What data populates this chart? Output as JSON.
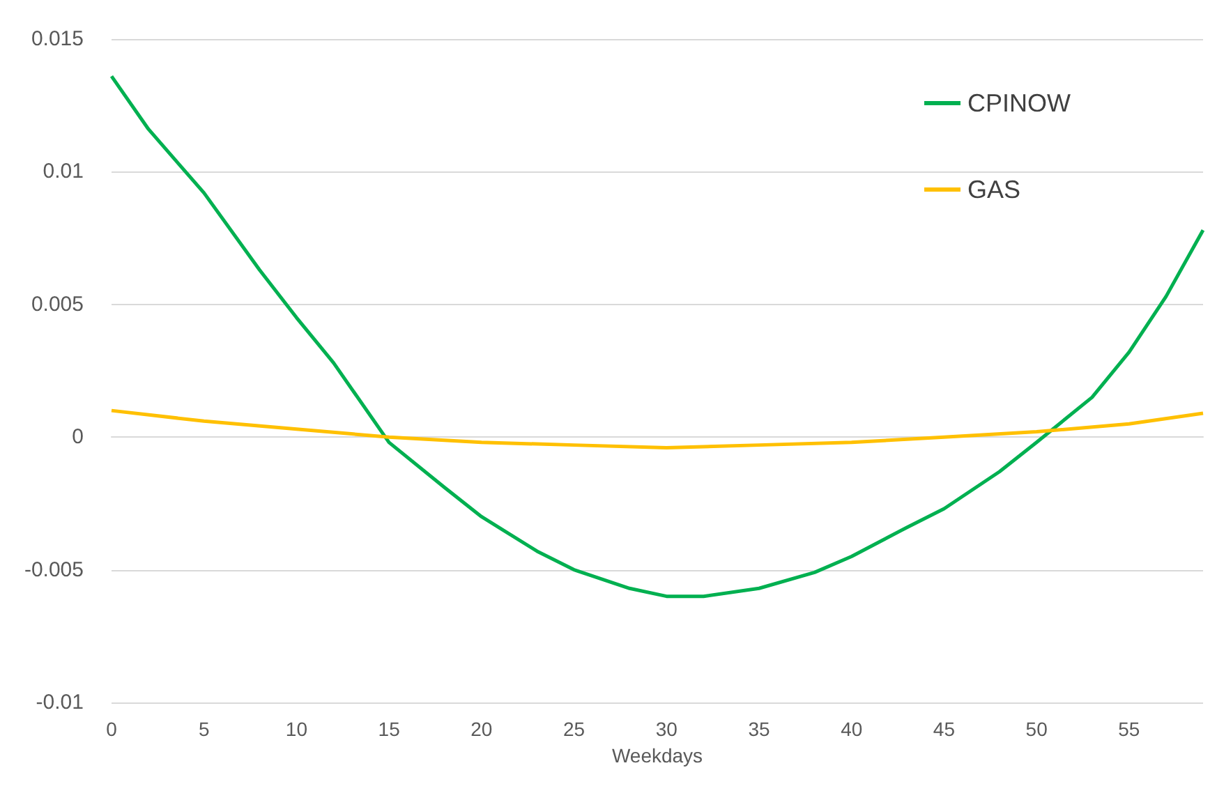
{
  "chart_data": {
    "type": "line",
    "xlabel": "Weekdays",
    "xlim": [
      0,
      59
    ],
    "xticks": [
      0,
      5,
      10,
      15,
      20,
      25,
      30,
      35,
      40,
      45,
      50,
      55
    ],
    "ylim": [
      -0.01,
      0.015
    ],
    "yticks": [
      -0.01,
      -0.005,
      0,
      0.005,
      0.01,
      0.015
    ],
    "grid": "y",
    "legend": "top right",
    "marker": "none",
    "line_style": "solid",
    "series": [
      {
        "name": "CPINOW",
        "color": "#00b050",
        "x": [
          0,
          2,
          5,
          8,
          10,
          12,
          15,
          18,
          20,
          23,
          25,
          28,
          30,
          32,
          35,
          38,
          40,
          43,
          45,
          48,
          50,
          53,
          55,
          57,
          59
        ],
        "values": [
          0.0136,
          0.0116,
          0.0092,
          0.0063,
          0.0045,
          0.0028,
          -0.0002,
          -0.0019,
          -0.003,
          -0.0043,
          -0.005,
          -0.0057,
          -0.006,
          -0.006,
          -0.0057,
          -0.0051,
          -0.0045,
          -0.0034,
          -0.0027,
          -0.0013,
          -0.0002,
          0.0015,
          0.0032,
          0.0053,
          0.0078
        ]
      },
      {
        "name": "GAS",
        "color": "#ffc000",
        "x": [
          0,
          5,
          10,
          15,
          20,
          25,
          30,
          35,
          40,
          45,
          50,
          55,
          59
        ],
        "values": [
          0.001,
          0.0006,
          0.0003,
          0,
          -0.0002,
          -0.0003,
          -0.0004,
          -0.0003,
          -0.0002,
          0,
          0.0002,
          0.0005,
          0.0009
        ]
      }
    ]
  }
}
